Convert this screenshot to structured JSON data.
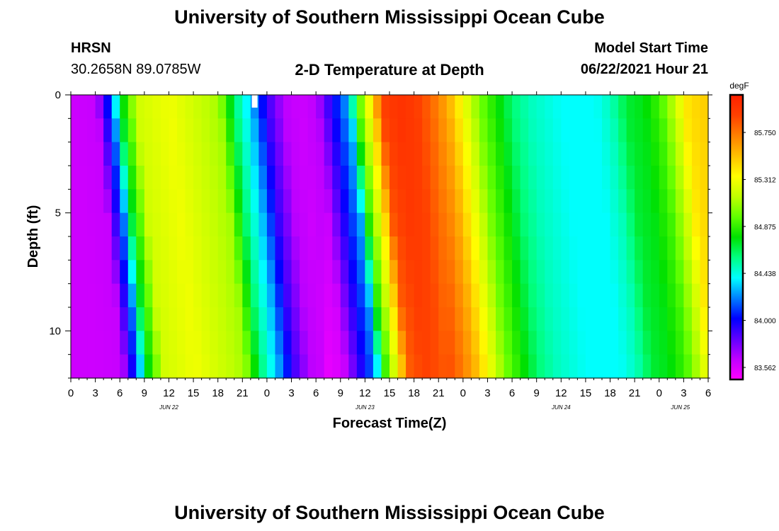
{
  "header": {
    "title": "University of Southern Mississippi Ocean Cube",
    "station": "HRSN",
    "coordinates": "30.2658N  89.0785W",
    "plot_title": "2-D Temperature at Depth",
    "model_start_label": "Model Start Time",
    "model_start_value": "06/22/2021 Hour 21"
  },
  "footer": {
    "title": "University of Southern Mississippi Ocean Cube"
  },
  "chart_data": {
    "type": "heatmap",
    "xlabel": "Forecast Time(Z)",
    "ylabel": "Depth (ft)",
    "x_tick_labels": [
      "0",
      "3",
      "6",
      "9",
      "12",
      "15",
      "18",
      "21",
      "0",
      "3",
      "6",
      "9",
      "12",
      "15",
      "18",
      "21",
      "0",
      "3",
      "6",
      "9",
      "12",
      "15",
      "18",
      "21",
      "0",
      "3",
      "6"
    ],
    "x_date_labels": [
      "JUN 22",
      "JUN 23",
      "JUN 24",
      "JUN 25"
    ],
    "x_range_hours": [
      0,
      78
    ],
    "y_tick_labels": [
      "0",
      "5",
      "10"
    ],
    "y_range_ft": [
      0,
      12
    ],
    "colorbar": {
      "unit": "degF",
      "tick_labels": [
        "85.750",
        "85.312",
        "84.875",
        "84.438",
        "84.000",
        "83.562"
      ],
      "min": 83.45,
      "max": 86.1,
      "colors": [
        "#ff00ff",
        "#c000ff",
        "#6000ff",
        "#0000ff",
        "#0080ff",
        "#00ffff",
        "#00ff80",
        "#00e000",
        "#60ff00",
        "#c0ff00",
        "#ffff00",
        "#ffc000",
        "#ff8000",
        "#ff4000",
        "#ff2000"
      ]
    },
    "depth_levels_ft": [
      0.5,
      1.5,
      2.5,
      3.5,
      4.5,
      5.5,
      6.5,
      7.5,
      8.5,
      9.5,
      10.5,
      11.5
    ],
    "temperature_profile_hours": [
      0,
      3,
      5,
      6,
      8,
      12,
      18,
      20,
      22,
      24,
      26,
      28,
      30,
      32,
      34,
      35,
      37,
      38,
      40,
      42,
      44,
      46,
      48,
      50,
      51,
      52,
      54,
      56,
      60,
      64,
      66,
      68,
      70,
      72,
      74,
      75,
      76,
      78
    ],
    "temperature_profile_surface_degF": [
      83.6,
      83.62,
      84.2,
      84.7,
      85.2,
      85.3,
      85.1,
      84.6,
      84.3,
      83.9,
      83.65,
      83.6,
      83.65,
      84.0,
      84.3,
      84.9,
      85.5,
      85.9,
      86.0,
      85.95,
      85.8,
      85.6,
      85.3,
      85.0,
      84.9,
      84.8,
      84.6,
      84.5,
      84.4,
      84.4,
      84.5,
      84.7,
      84.75,
      84.9,
      85.2,
      85.4,
      85.45,
      85.5
    ],
    "marker_hour": 22.5
  }
}
